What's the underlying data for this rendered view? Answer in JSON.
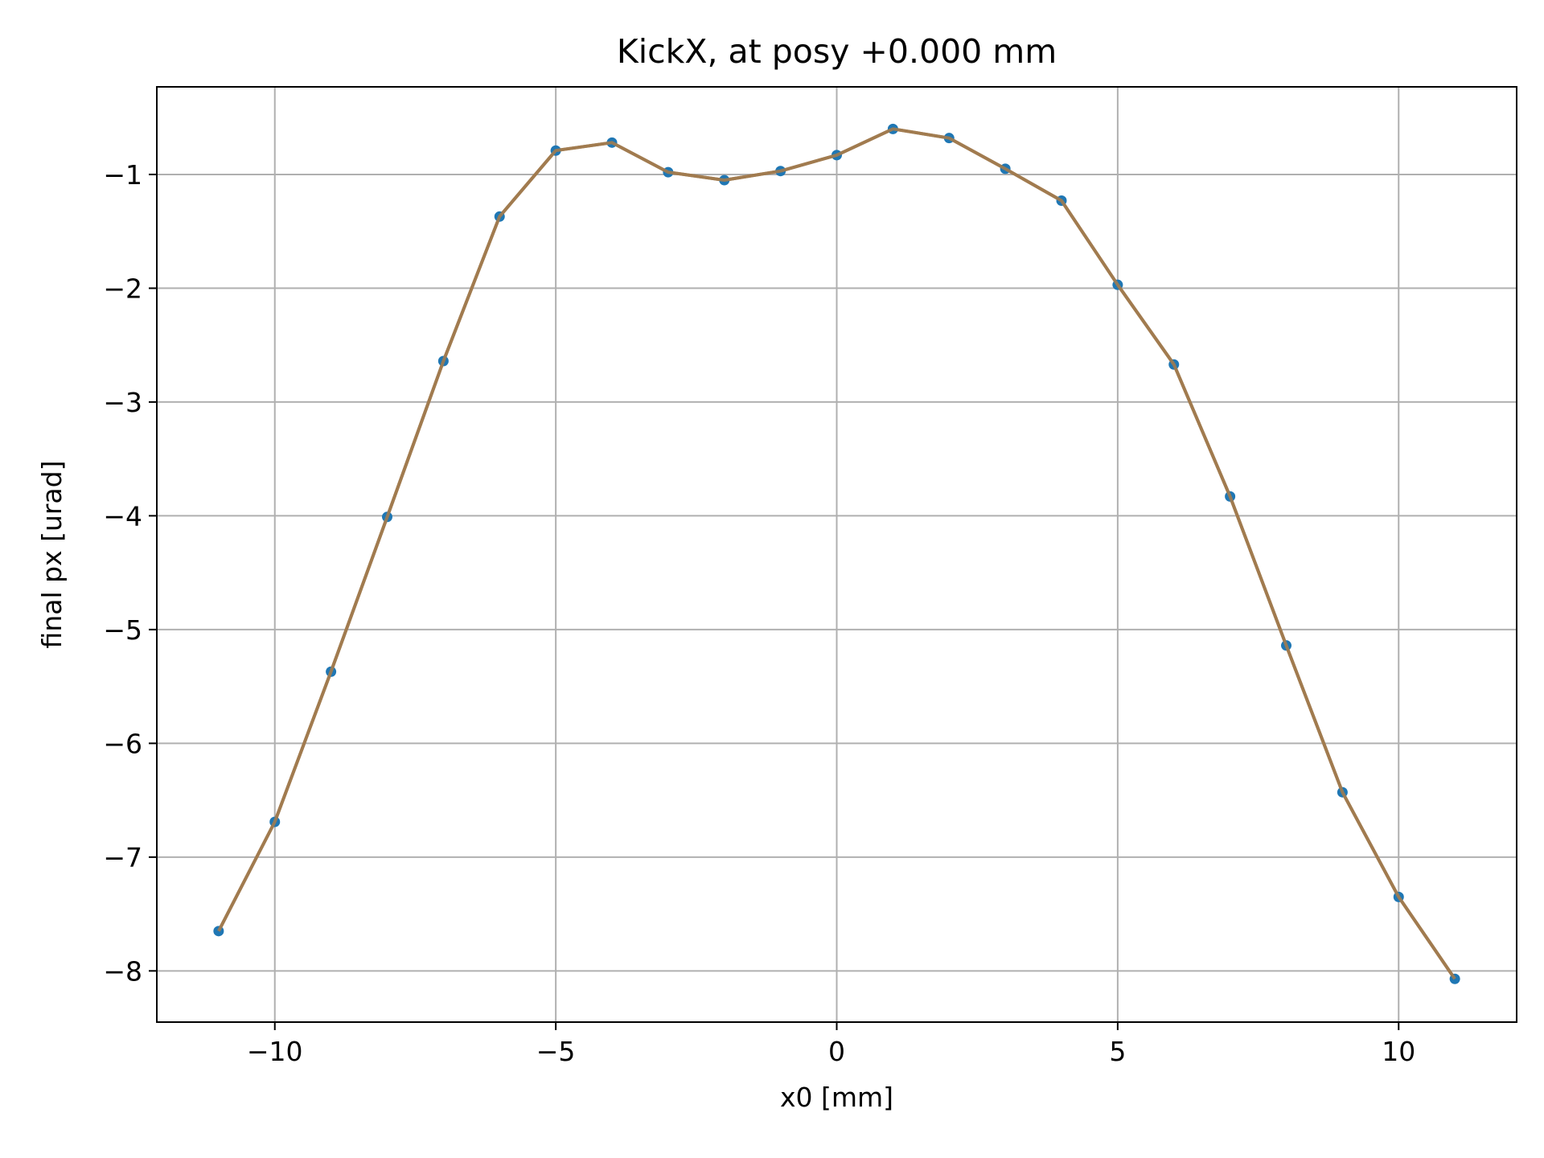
{
  "chart_data": {
    "type": "line",
    "title": "KickX, at posy +0.000 mm",
    "xlabel": "x0 [mm]",
    "ylabel": "final px [urad]",
    "xlim": [
      -12.1,
      12.1
    ],
    "ylim": [
      -8.45,
      -0.23
    ],
    "xticks": [
      -10,
      -5,
      0,
      5,
      10
    ],
    "xtick_labels": [
      "−10",
      "−5",
      "0",
      "5",
      "10"
    ],
    "yticks": [
      -1,
      -2,
      -3,
      -4,
      -5,
      -6,
      -7,
      -8
    ],
    "ytick_labels": [
      "−1",
      "−2",
      "−3",
      "−4",
      "−5",
      "−6",
      "−7",
      "−8"
    ],
    "grid": true,
    "x": [
      -11,
      -10,
      -9,
      -8,
      -7,
      -6,
      -5,
      -4,
      -3,
      -2,
      -1,
      0,
      1,
      2,
      3,
      4,
      5,
      6,
      7,
      8,
      9,
      10,
      11
    ],
    "series": [
      {
        "values": [
          -7.65,
          -6.69,
          -5.37,
          -4.01,
          -2.64,
          -1.37,
          -0.79,
          -0.72,
          -0.98,
          -1.05,
          -0.97,
          -0.83,
          -0.6,
          -0.68,
          -0.95,
          -1.23,
          -1.97,
          -2.67,
          -3.83,
          -5.14,
          -6.43,
          -7.35,
          -8.07
        ],
        "line_color": "#a17b4f",
        "marker_color": "#1f77b4"
      }
    ]
  }
}
